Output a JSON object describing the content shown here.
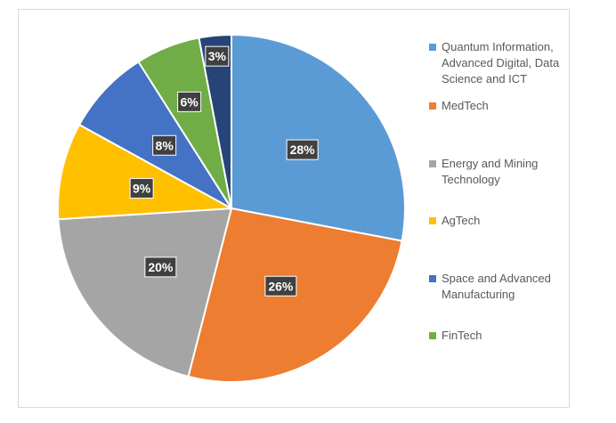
{
  "chart_data": {
    "type": "pie",
    "title": "",
    "legend_position": "right",
    "slices": [
      {
        "label": "Quantum Information,\nAdvanced Digital, Data\nScience and ICT",
        "value": 28,
        "data_label": "28%",
        "color": "#5B9BD5"
      },
      {
        "label": "MedTech",
        "value": 26,
        "data_label": "26%",
        "color": "#ED7D31"
      },
      {
        "label": "Energy and Mining\nTechnology",
        "value": 20,
        "data_label": "20%",
        "color": "#A5A5A5"
      },
      {
        "label": "AgTech",
        "value": 9,
        "data_label": "9%",
        "color": "#FFC000"
      },
      {
        "label": "Space and Advanced\nManufacturing",
        "value": 8,
        "data_label": "8%",
        "color": "#4472C4"
      },
      {
        "label": "FinTech",
        "value": 6,
        "data_label": "6%",
        "color": "#70AD47"
      },
      {
        "label": "",
        "value": 3,
        "data_label": "3%",
        "color": "#264478"
      }
    ]
  }
}
